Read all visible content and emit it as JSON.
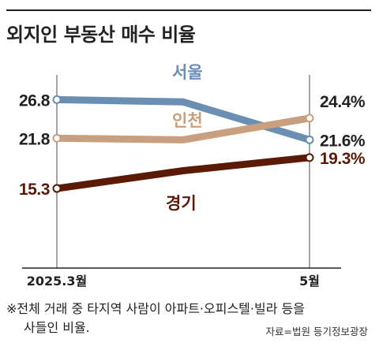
{
  "title": "외지인 부동산 매수 비율",
  "chart_data": {
    "type": "line",
    "categories": [
      "2025.3월",
      "",
      "5월"
    ],
    "series": [
      {
        "name": "서울",
        "values": [
          26.8,
          26.5,
          21.6
        ],
        "color": "#6b8fb3"
      },
      {
        "name": "인천",
        "values": [
          21.8,
          21.6,
          24.4
        ],
        "color": "#c9a07f"
      },
      {
        "name": "경기",
        "values": [
          15.3,
          17.6,
          19.3
        ],
        "color": "#5b1a06"
      }
    ],
    "start_labels": [
      "26.8",
      "21.8",
      "15.3"
    ],
    "end_labels": [
      "21.6%",
      "24.4%",
      "19.3%"
    ],
    "ylim": [
      5,
      30
    ],
    "grid": false,
    "legend": "inline"
  },
  "footnote": {
    "line1": "※전체 거래 중 타지역 사람이 아파트·오피스텔·빌라 등을",
    "line2": "사들인 비율."
  },
  "source": "자료=법원 등기정보광장"
}
